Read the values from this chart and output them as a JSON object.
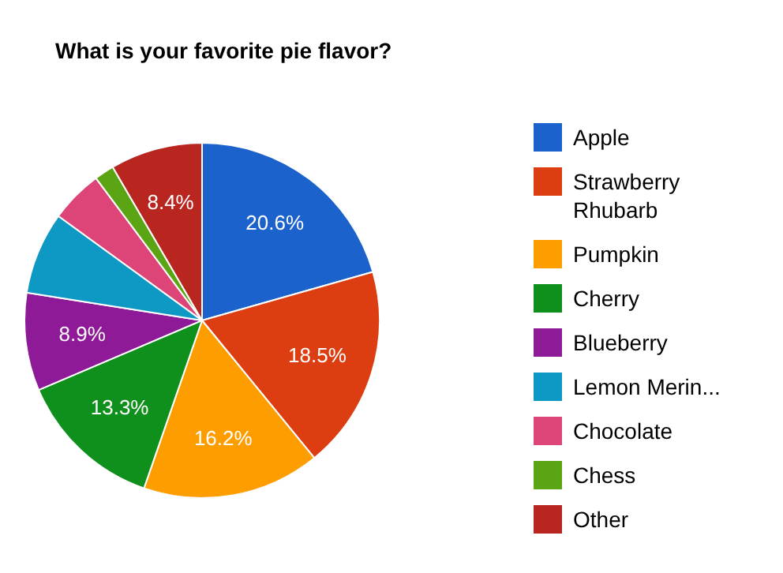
{
  "chart_data": {
    "type": "pie",
    "title": "What is your favorite pie flavor?",
    "categories": [
      "Apple",
      "Strawberry Rhubarb",
      "Pumpkin",
      "Cherry",
      "Blueberry",
      "Lemon Merin...",
      "Chocolate",
      "Chess",
      "Other"
    ],
    "values": [
      20.6,
      18.5,
      16.2,
      13.3,
      8.9,
      7.5,
      4.8,
      1.8,
      8.4
    ],
    "value_labels": [
      "20.6%",
      "18.5%",
      "16.2%",
      "13.3%",
      "8.9%",
      null,
      null,
      null,
      "8.4%"
    ],
    "colors": [
      "#1c62cc",
      "#dc3e12",
      "#fe9d00",
      "#0f8f1c",
      "#8e1a98",
      "#0e98c4",
      "#dd4477",
      "#5ba514",
      "#b8261f"
    ],
    "legend": "right"
  }
}
